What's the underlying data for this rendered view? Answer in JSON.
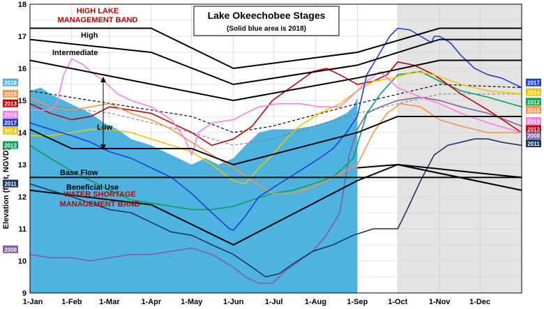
{
  "chart_data": {
    "type": "line",
    "title": "Lake Okeechobee Stages",
    "subtitle": "(Solid blue area is 2018)",
    "ylabel": "Elevation (feet, NGVD)",
    "xlabel": "",
    "ylim": [
      9,
      18
    ],
    "yticks": [
      "9",
      "10",
      "11",
      "12",
      "13",
      "14",
      "15",
      "16",
      "17",
      "18"
    ],
    "xticks": [
      "1-Jan",
      "1-Feb",
      "1-Mar",
      "1-Apr",
      "1-May",
      "1-Jun",
      "1-Jul",
      "1-Aug",
      "1-Sep",
      "1-Oct",
      "1-Nov",
      "1-Dec"
    ],
    "xtick_days": [
      0,
      31,
      59,
      90,
      120,
      151,
      181,
      212,
      243,
      273,
      304,
      334
    ],
    "grid": true,
    "shaded_region": {
      "from_day": 273,
      "to_day": 365,
      "color": "#e4e4e4"
    },
    "zone_lines": [
      {
        "name": "High",
        "x": [
          0,
          90,
          151,
          243,
          304,
          365
        ],
        "y": [
          17.25,
          17.25,
          16.0,
          16.5,
          17.25,
          17.25
        ]
      },
      {
        "name": "upper",
        "x": [
          0,
          90,
          151,
          243,
          304,
          365
        ],
        "y": [
          16.9,
          16.5,
          15.5,
          16.1,
          16.9,
          16.9
        ]
      },
      {
        "name": "Intermediate",
        "x": [
          0,
          151,
          243,
          304,
          365
        ],
        "y": [
          16.25,
          15.0,
          15.7,
          16.25,
          16.25
        ]
      },
      {
        "name": "Low",
        "x": [
          0,
          31,
          120,
          151,
          243,
          273,
          365
        ],
        "y": [
          14.1,
          13.5,
          13.5,
          13.0,
          14.0,
          14.5,
          14.5
        ]
      },
      {
        "name": "Base Flow",
        "x": [
          0,
          365
        ],
        "y": [
          12.6,
          12.6
        ]
      },
      {
        "name": "Beneficial Use",
        "x": [
          0,
          90,
          151,
          243,
          273,
          365
        ],
        "y": [
          12.2,
          11.75,
          10.5,
          12.5,
          13.0,
          12.2
        ]
      },
      {
        "name": "lower",
        "x": [
          273,
          365
        ],
        "y": [
          13.0,
          12.6
        ]
      },
      {
        "name": "lower2",
        "x": [
          243,
          273,
          365
        ],
        "y": [
          12.9,
          13.0,
          12.2
        ]
      }
    ],
    "dashed_lines": [
      {
        "x": [
          0,
          60,
          120,
          151,
          180,
          243,
          304,
          365
        ],
        "y": [
          15.3,
          14.9,
          14.5,
          14.0,
          14.2,
          14.9,
          15.5,
          15.4
        ]
      },
      {
        "x": [
          0,
          60,
          120,
          151,
          180,
          243,
          304,
          365
        ],
        "y": [
          14.9,
          14.6,
          14.0,
          13.6,
          13.8,
          14.6,
          15.2,
          15.2
        ]
      }
    ],
    "band_labels": {
      "high": [
        "HIGH LAKE",
        "MANAGEMENT BAND"
      ],
      "shortage": [
        "WATER SHORTAGE",
        "MANAGEMENT BAND"
      ]
    },
    "zone_labels": {
      "high": "High",
      "intermediate": "Intermediate",
      "low": "Low",
      "base_flow": "Base Flow",
      "beneficial_use": "Beneficial Use"
    },
    "series": [
      {
        "name": "2018",
        "color": "#4fb3e1",
        "area": true,
        "x": [
          0,
          8,
          15,
          25,
          35,
          45,
          55,
          65,
          75,
          90,
          100,
          110,
          120,
          130,
          140,
          151,
          160,
          170,
          180,
          195,
          210,
          225,
          235,
          240,
          243
        ],
        "y": [
          15.3,
          15.4,
          15.2,
          15.0,
          14.8,
          14.6,
          14.3,
          14.1,
          13.8,
          13.6,
          13.4,
          13.2,
          13.0,
          13.2,
          13.0,
          13.2,
          13.6,
          14.0,
          14.1,
          14.1,
          14.2,
          14.4,
          14.6,
          14.8,
          15.1
        ]
      },
      {
        "name": "2017",
        "color": "#1f3fd6",
        "x": [
          0,
          15,
          31,
          45,
          59,
          75,
          90,
          105,
          120,
          135,
          148,
          151,
          160,
          170,
          185,
          200,
          215,
          225,
          235,
          243,
          250,
          260,
          267,
          273,
          282,
          290,
          298,
          300,
          304,
          312,
          320,
          330,
          340,
          350,
          365
        ],
        "y": [
          14.3,
          14.1,
          13.9,
          13.7,
          13.4,
          13.2,
          12.9,
          12.6,
          12.1,
          11.5,
          11.0,
          10.95,
          11.4,
          12.0,
          12.4,
          12.8,
          13.2,
          13.5,
          14.0,
          14.5,
          15.8,
          16.5,
          17.0,
          17.25,
          17.2,
          17.0,
          16.8,
          17.0,
          17.0,
          16.8,
          16.4,
          16.0,
          15.8,
          15.7,
          15.4
        ]
      },
      {
        "name": "2016",
        "color": "#ff7fe0",
        "x": [
          0,
          15,
          20,
          25,
          31,
          40,
          45,
          55,
          65,
          75,
          90,
          105,
          115,
          120,
          125,
          135,
          151,
          160,
          170,
          185,
          200,
          215,
          230,
          243,
          250,
          260,
          273,
          290,
          304,
          320,
          340,
          365
        ],
        "y": [
          14.7,
          14.7,
          14.9,
          15.8,
          16.3,
          16.1,
          15.9,
          15.6,
          15.2,
          15.0,
          14.8,
          14.4,
          13.8,
          13.3,
          14.0,
          14.3,
          14.4,
          14.6,
          14.8,
          14.9,
          14.9,
          14.8,
          14.8,
          15.3,
          15.6,
          15.9,
          15.4,
          15.1,
          14.9,
          14.6,
          14.3,
          14.0
        ]
      },
      {
        "name": "2015",
        "color": "#f79646",
        "x": [
          0,
          15,
          31,
          45,
          59,
          75,
          90,
          105,
          120,
          135,
          151,
          165,
          180,
          195,
          210,
          225,
          243,
          255,
          265,
          275,
          290,
          304,
          320,
          340,
          365
        ],
        "y": [
          15.1,
          14.8,
          14.7,
          14.8,
          14.9,
          14.6,
          14.4,
          14.1,
          13.7,
          13.3,
          12.9,
          12.5,
          12.1,
          12.1,
          12.3,
          12.6,
          13.0,
          14.0,
          14.6,
          14.9,
          14.8,
          14.4,
          14.2,
          14.0,
          14.0
        ]
      },
      {
        "name": "2014",
        "color": "#f2c300",
        "x": [
          0,
          15,
          31,
          45,
          59,
          75,
          90,
          105,
          120,
          135,
          151,
          160,
          170,
          180,
          190,
          200,
          215,
          230,
          243,
          255,
          270,
          285,
          300,
          320,
          340,
          365
        ],
        "y": [
          13.9,
          13.9,
          14.0,
          14.1,
          14.1,
          14.0,
          13.8,
          13.6,
          13.4,
          13.0,
          12.5,
          12.4,
          12.9,
          13.3,
          13.8,
          14.2,
          14.6,
          14.9,
          15.3,
          15.6,
          15.7,
          15.9,
          15.8,
          15.5,
          15.3,
          15.2
        ]
      },
      {
        "name": "2013",
        "color": "#c00000",
        "x": [
          0,
          15,
          31,
          45,
          59,
          75,
          90,
          105,
          120,
          135,
          151,
          165,
          180,
          190,
          200,
          210,
          220,
          230,
          243,
          255,
          265,
          273,
          285,
          300,
          320,
          340,
          365
        ],
        "y": [
          14.9,
          14.6,
          14.4,
          14.5,
          14.8,
          14.7,
          14.6,
          14.3,
          14.0,
          13.6,
          13.8,
          14.2,
          15.0,
          15.3,
          15.6,
          15.9,
          16.0,
          15.8,
          15.5,
          15.6,
          15.8,
          16.2,
          16.1,
          15.8,
          15.2,
          14.7,
          14.0
        ]
      },
      {
        "name": "2012",
        "color": "#00a651",
        "x": [
          0,
          15,
          31,
          45,
          59,
          75,
          90,
          105,
          120,
          135,
          151,
          165,
          180,
          195,
          210,
          225,
          240,
          250,
          260,
          273,
          290,
          304,
          320,
          340,
          365
        ],
        "y": [
          13.6,
          13.2,
          12.8,
          12.5,
          12.2,
          11.9,
          11.8,
          11.7,
          11.6,
          11.6,
          11.7,
          11.9,
          12.1,
          12.2,
          12.4,
          12.6,
          13.2,
          14.6,
          15.2,
          15.8,
          15.9,
          15.6,
          15.3,
          15.1,
          14.8
        ]
      },
      {
        "name": "2011",
        "color": "#17375e",
        "x": [
          0,
          15,
          31,
          45,
          59,
          75,
          90,
          105,
          120,
          135,
          151,
          165,
          175,
          185,
          195,
          210,
          225,
          240,
          255,
          265,
          273,
          280,
          290,
          300,
          310,
          320,
          330,
          340,
          350,
          365
        ],
        "y": [
          12.4,
          12.2,
          12.0,
          11.8,
          11.6,
          11.5,
          11.2,
          10.9,
          10.8,
          10.5,
          10.2,
          9.8,
          9.5,
          9.6,
          9.9,
          10.3,
          10.5,
          10.8,
          11.0,
          11.0,
          11.0,
          11.6,
          12.5,
          13.3,
          13.6,
          13.7,
          13.8,
          13.8,
          13.7,
          13.6
        ]
      },
      {
        "name": "2008",
        "color": "#7f5fa0",
        "x": [
          0,
          15,
          31,
          45,
          59,
          75,
          90,
          105,
          120,
          135,
          151,
          160,
          170,
          180,
          190,
          200,
          210,
          220,
          230,
          237,
          243,
          250,
          260,
          273,
          290,
          304,
          320,
          340,
          365
        ],
        "y": [
          10.2,
          10.1,
          10.1,
          10.0,
          10.1,
          10.2,
          10.2,
          10.3,
          10.4,
          10.2,
          9.8,
          9.5,
          9.3,
          9.3,
          9.7,
          10.0,
          10.3,
          10.8,
          11.5,
          13.3,
          14.1,
          14.6,
          14.8,
          15.0,
          15.1,
          15.0,
          14.8,
          14.6,
          14.2
        ]
      }
    ],
    "badges_left": [
      {
        "label": "2018",
        "y": 15.55,
        "color": "#4fb3e1"
      },
      {
        "label": "2015",
        "y": 15.2,
        "color": "#f79646"
      },
      {
        "label": "2013",
        "y": 14.9,
        "color": "#c00000"
      },
      {
        "label": "2016",
        "y": 14.55,
        "color": "#ff7fe0"
      },
      {
        "label": "2017",
        "y": 14.3,
        "color": "#1f3fd6"
      },
      {
        "label": "2014",
        "y": 14.05,
        "color": "#f2c300"
      },
      {
        "label": "2012",
        "y": 13.6,
        "color": "#00a651"
      },
      {
        "label": "2011",
        "y": 12.4,
        "color": "#17375e"
      },
      {
        "label": "2008",
        "y": 10.35,
        "color": "#7f5fa0"
      }
    ],
    "badges_right": [
      {
        "label": "2017",
        "y": 15.55,
        "color": "#1f3fd6"
      },
      {
        "label": "2014",
        "y": 15.25,
        "color": "#f2c300"
      },
      {
        "label": "2012",
        "y": 14.95,
        "color": "#00a651"
      },
      {
        "label": "2015",
        "y": 14.7,
        "color": "#f79646"
      },
      {
        "label": "2016",
        "y": 14.35,
        "color": "#ff7fe0"
      },
      {
        "label": "2013",
        "y": 14.1,
        "color": "#c00000"
      },
      {
        "label": "2008",
        "y": 13.9,
        "color": "#7f5fa0"
      },
      {
        "label": "2011",
        "y": 13.65,
        "color": "#17375e"
      }
    ]
  }
}
